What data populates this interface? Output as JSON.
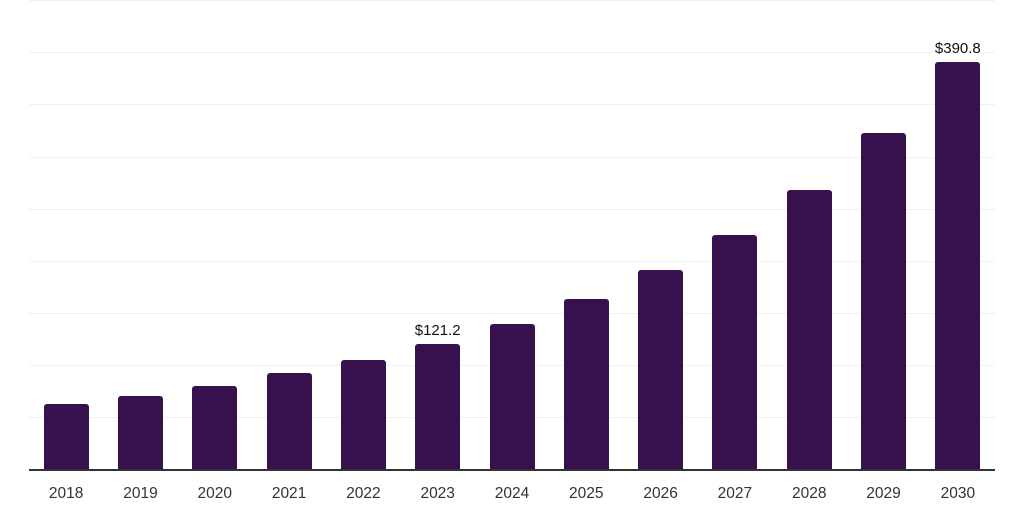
{
  "chart_data": {
    "type": "bar",
    "title": "",
    "xlabel": "",
    "ylabel": "",
    "categories": [
      "2018",
      "2019",
      "2020",
      "2021",
      "2022",
      "2023",
      "2024",
      "2025",
      "2026",
      "2027",
      "2028",
      "2029",
      "2030"
    ],
    "values": [
      63.5,
      70.7,
      80.6,
      92.8,
      105.9,
      121.2,
      140.1,
      163.5,
      191.4,
      225.1,
      268.3,
      323.3,
      390.8
    ],
    "data_labels": [
      "",
      "",
      "",
      "",
      "",
      "$121.2",
      "",
      "",
      "",
      "",
      "",
      "",
      "$390.8"
    ],
    "ylim": [
      0,
      450
    ],
    "gridline_step": 50,
    "grid": true,
    "legend": "none",
    "colors": {
      "bar": "#36114E",
      "gridline": "#F0F0F0",
      "axis_line": "#333333",
      "tick_label": "#333333",
      "data_label": "#111111",
      "background": "#FFFFFF"
    }
  }
}
